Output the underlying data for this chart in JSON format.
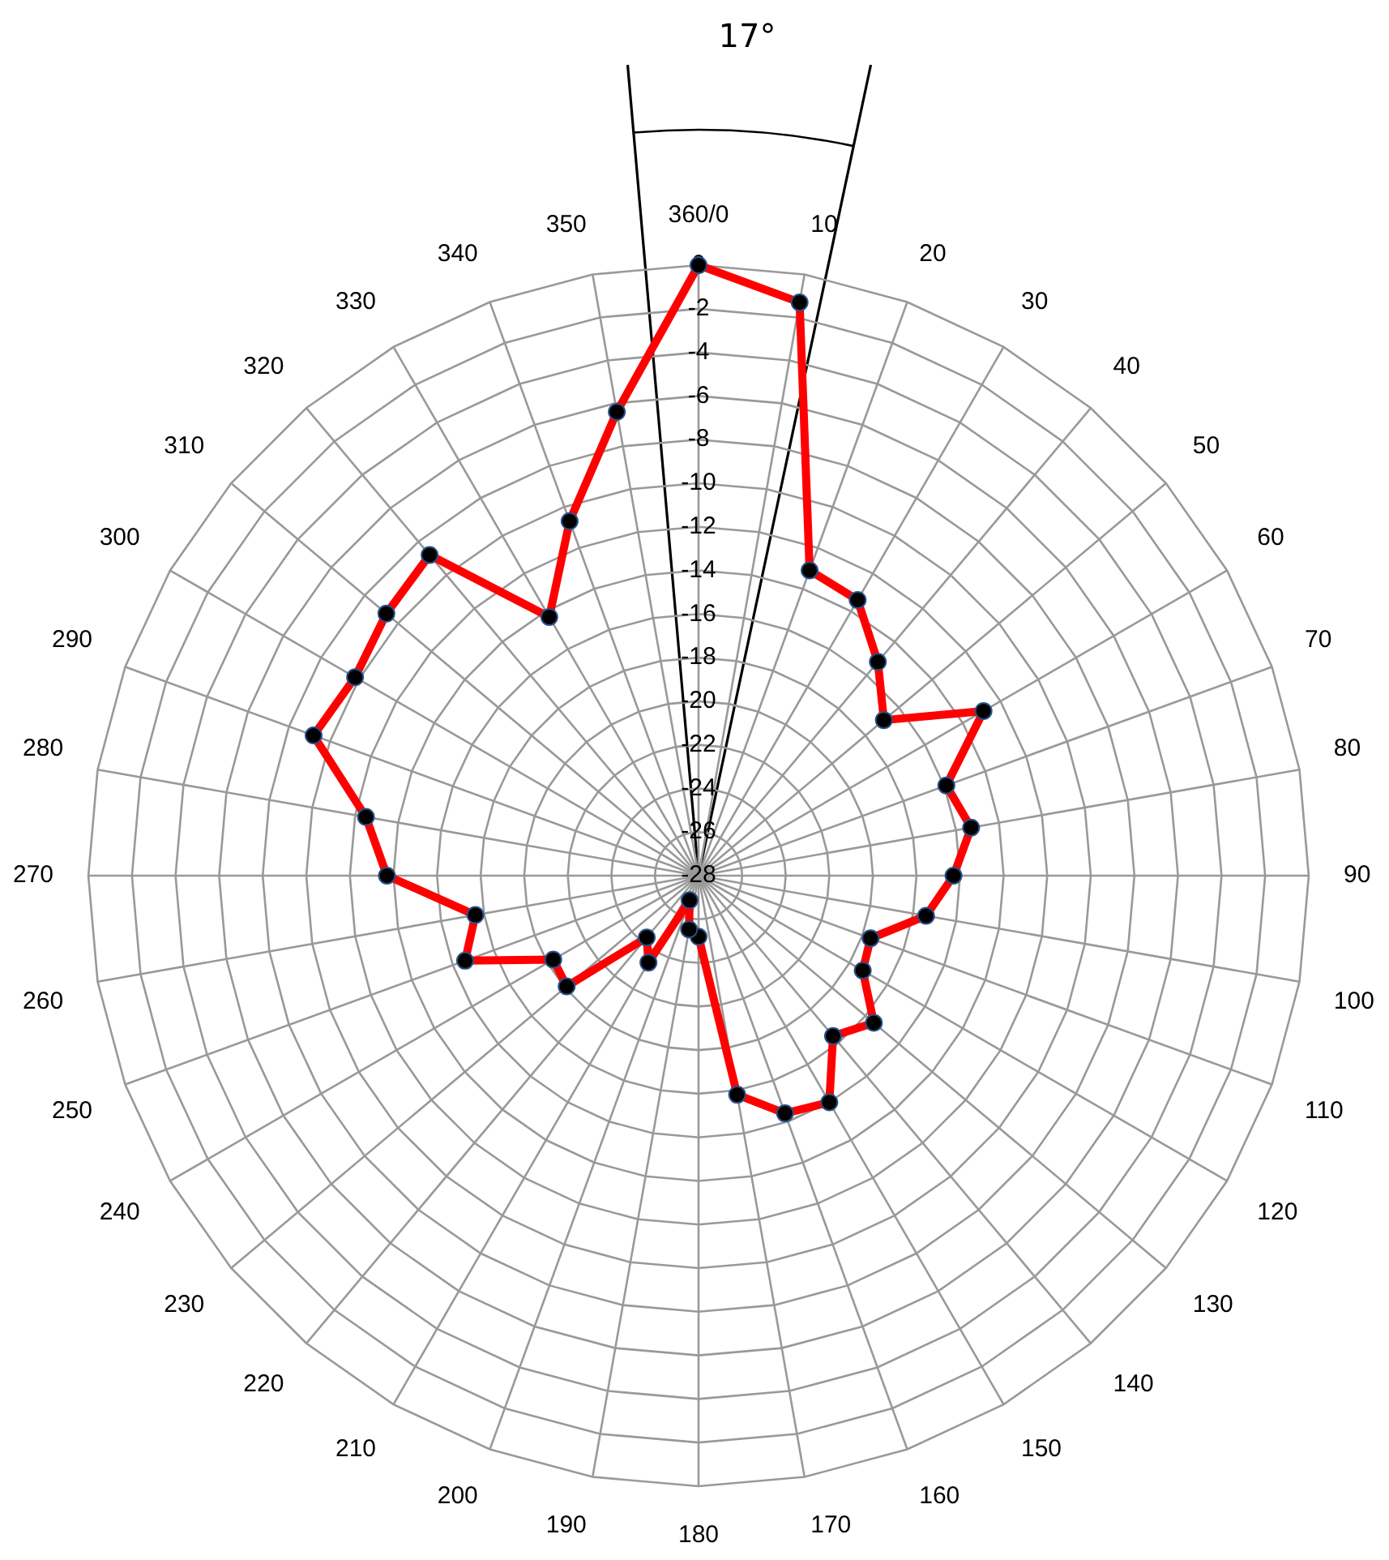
{
  "chart_data": {
    "type": "radar",
    "categories": [
      "360/0",
      "10",
      "20",
      "30",
      "40",
      "50",
      "60",
      "70",
      "80",
      "90",
      "100",
      "110",
      "120",
      "130",
      "140",
      "150",
      "160",
      "170",
      "180",
      "190",
      "200",
      "210",
      "220",
      "230",
      "240",
      "250",
      "260",
      "270",
      "280",
      "290",
      "300",
      "310",
      "320",
      "330",
      "340",
      "350"
    ],
    "series": [
      {
        "color": "#ff0000",
        "values": [
          0,
          -1.3,
          -13.1,
          -13.4,
          -15.2,
          -16.9,
          -12.9,
          -15.9,
          -15.3,
          -16.3,
          -17.4,
          -19.6,
          -19.3,
          -17.5,
          -18.4,
          -16,
          -16.4,
          -17.8,
          -25.2,
          -25.5,
          -26.8,
          -23.4,
          -24.3,
          -20.1,
          -20.3,
          -16.6,
          -17.6,
          -13.7,
          -12.5,
          -9.2,
          -9.8,
          -9.3,
          -8.8,
          -14.3,
          -10.7,
          -6.4
        ]
      }
    ],
    "ylim": [
      -28,
      0
    ],
    "yticks": [
      -28,
      -26,
      -24,
      -22,
      -20,
      -18,
      -16,
      -14,
      -12,
      -10,
      -8,
      -6,
      -4,
      -2,
      0
    ],
    "grid": true,
    "marker": "circle",
    "line_style": "solid",
    "annotations": [
      "17°"
    ]
  }
}
